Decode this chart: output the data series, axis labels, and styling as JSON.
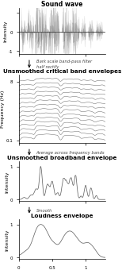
{
  "title1": "Sound wave",
  "title2": "Unsmoothed critical band envelopes",
  "title3": "Unsmoothed broadband envelope",
  "title4": "Loudness envelope",
  "arrow_text1": "Bark scale band-pass filter\nhalf rectify",
  "arrow_text2": "Average across frequency bands",
  "arrow_text3": "Smooth",
  "ylabel1": "Intensity",
  "ylabel2": "Frequency (Hz)",
  "ylabel3": "Intensity",
  "ylabel4": "Intensity",
  "freq_ytick_labels": [
    "0.1",
    "8"
  ],
  "background_color": "#ffffff",
  "line_color": "#666666",
  "fill_color": "#777777",
  "num_bands": 14
}
